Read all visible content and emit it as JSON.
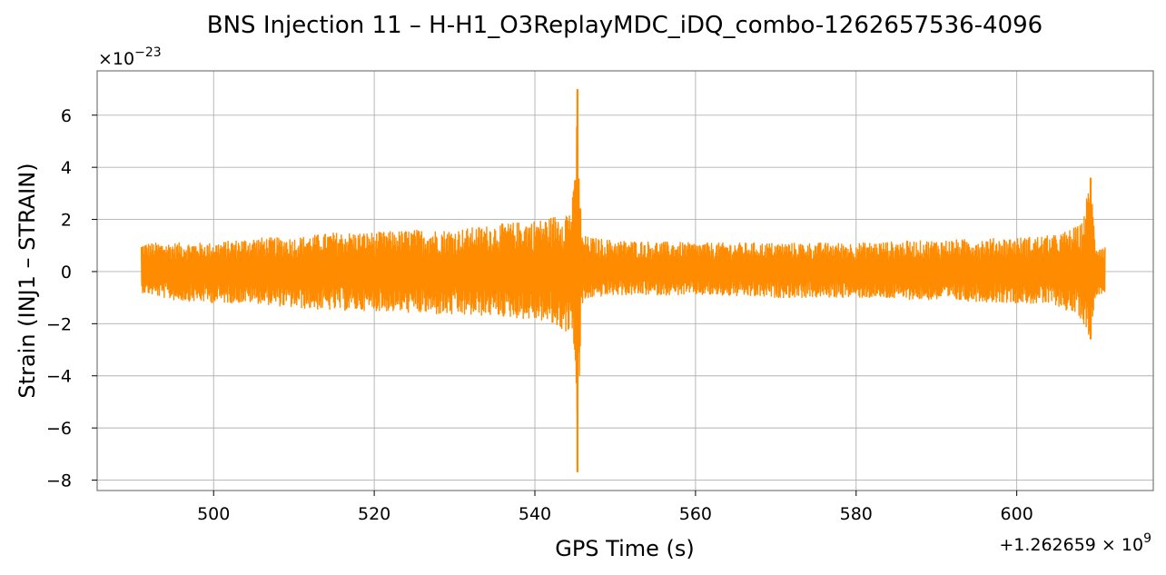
{
  "chart_data": {
    "type": "line",
    "title": "BNS Injection 11 – H-H1_O3ReplayMDC_iDQ_combo-1262657536-4096",
    "xlabel": "GPS Time (s)",
    "ylabel": "Strain (INJ1 – STRAIN)",
    "x_offset_text": "+1.262659 × 10",
    "x_offset_exponent": "9",
    "y_multiplier_text": "×10",
    "y_multiplier_exponent": "−23",
    "xlim": [
      485.5,
      617
    ],
    "ylim": [
      -8.4,
      7.7
    ],
    "x_ticks": [
      500,
      520,
      540,
      560,
      580,
      600
    ],
    "y_ticks": [
      -8,
      -6,
      -4,
      -2,
      0,
      2,
      4,
      6
    ],
    "x_tick_labels": [
      "500",
      "520",
      "540",
      "560",
      "580",
      "600"
    ],
    "y_tick_labels": [
      "−8",
      "−6",
      "−4",
      "−2",
      "0",
      "2",
      "4",
      "6"
    ],
    "grid": true,
    "legend": "none",
    "series": [
      {
        "color": "#ff8c00",
        "x_start": 491,
        "x_end": 611,
        "envelope": [
          {
            "x": 491,
            "upper": 1.1,
            "lower": -0.8
          },
          {
            "x": 495,
            "upper": 1.1,
            "lower": -1.1
          },
          {
            "x": 500,
            "upper": 1.1,
            "lower": -1.2
          },
          {
            "x": 505,
            "upper": 1.3,
            "lower": -1.2
          },
          {
            "x": 510,
            "upper": 1.3,
            "lower": -1.4
          },
          {
            "x": 515,
            "upper": 1.5,
            "lower": -1.5
          },
          {
            "x": 520,
            "upper": 1.5,
            "lower": -1.5
          },
          {
            "x": 525,
            "upper": 1.6,
            "lower": -1.6
          },
          {
            "x": 530,
            "upper": 1.6,
            "lower": -1.7
          },
          {
            "x": 535,
            "upper": 1.8,
            "lower": -1.7
          },
          {
            "x": 538,
            "upper": 1.9,
            "lower": -1.8
          },
          {
            "x": 541,
            "upper": 2.0,
            "lower": -1.9
          },
          {
            "x": 543,
            "upper": 2.2,
            "lower": -2.2
          },
          {
            "x": 544.5,
            "upper": 2.5,
            "lower": -2.4
          },
          {
            "x": 545,
            "upper": 3.5,
            "lower": -3.0
          },
          {
            "x": 545.3,
            "upper": 7.0,
            "lower": -7.7
          },
          {
            "x": 545.8,
            "upper": 1.4,
            "lower": -1.3
          },
          {
            "x": 547,
            "upper": 1.3,
            "lower": -1.0
          },
          {
            "x": 550,
            "upper": 1.2,
            "lower": -0.9
          },
          {
            "x": 560,
            "upper": 1.1,
            "lower": -0.9
          },
          {
            "x": 570,
            "upper": 1.1,
            "lower": -1.0
          },
          {
            "x": 580,
            "upper": 1.1,
            "lower": -1.0
          },
          {
            "x": 590,
            "upper": 1.2,
            "lower": -1.1
          },
          {
            "x": 600,
            "upper": 1.3,
            "lower": -1.2
          },
          {
            "x": 605,
            "upper": 1.4,
            "lower": -1.3
          },
          {
            "x": 608,
            "upper": 1.8,
            "lower": -1.8
          },
          {
            "x": 609.2,
            "upper": 3.6,
            "lower": -2.6
          },
          {
            "x": 609.8,
            "upper": 1.1,
            "lower": -0.9
          },
          {
            "x": 611,
            "upper": 1.0,
            "lower": -0.8
          }
        ]
      }
    ]
  }
}
